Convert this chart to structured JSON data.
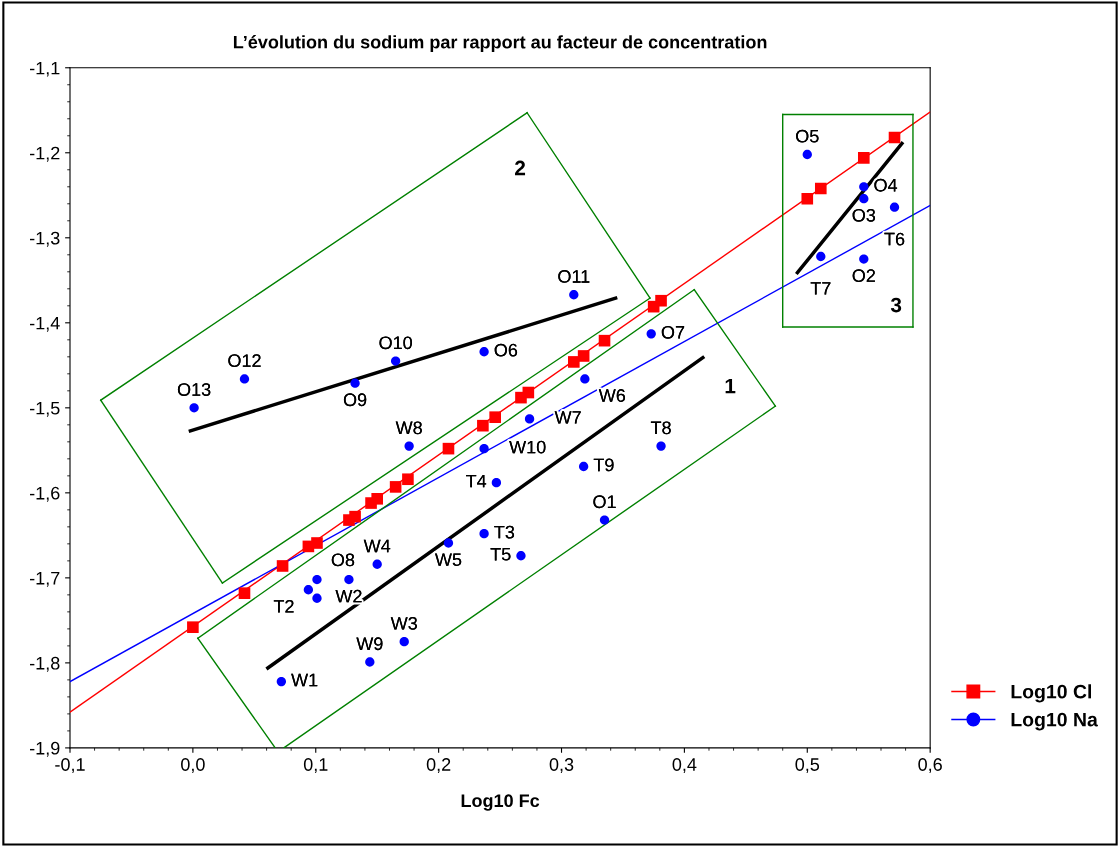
{
  "chart_data": {
    "type": "scatter",
    "title": "L’évolution du sodium par rapport au facteur de concentration",
    "xlabel": "Log10 Fc",
    "xlim": [
      -0.1,
      0.6
    ],
    "ylim": [
      -1.9,
      -1.1
    ],
    "xticks": [
      {
        "value": -0.1,
        "label": "-0,1"
      },
      {
        "value": 0.0,
        "label": "0,0"
      },
      {
        "value": 0.1,
        "label": "0,1"
      },
      {
        "value": 0.2,
        "label": "0,2"
      },
      {
        "value": 0.3,
        "label": "0,3"
      },
      {
        "value": 0.4,
        "label": "0,4"
      },
      {
        "value": 0.5,
        "label": "0,5"
      },
      {
        "value": 0.6,
        "label": "0,6"
      }
    ],
    "yticks": [
      {
        "value": -1.9,
        "label": "-1,9"
      },
      {
        "value": -1.8,
        "label": "-1,8"
      },
      {
        "value": -1.7,
        "label": "-1,7"
      },
      {
        "value": -1.6,
        "label": "-1,6"
      },
      {
        "value": -1.5,
        "label": "-1,5"
      },
      {
        "value": -1.4,
        "label": "-1,4"
      },
      {
        "value": -1.3,
        "label": "-1,3"
      },
      {
        "value": -1.2,
        "label": "-1,2"
      },
      {
        "value": -1.1,
        "label": "-1,1"
      }
    ],
    "grid": false,
    "legend": "bottom right",
    "series": [
      {
        "name": "Log10 Cl",
        "type": "scatter",
        "marker": "square",
        "color": "#ff0000",
        "x": [
          0.0,
          0.042,
          0.073,
          0.094,
          0.101,
          0.127,
          0.132,
          0.145,
          0.15,
          0.165,
          0.175,
          0.208,
          0.236,
          0.246,
          0.267,
          0.273,
          0.31,
          0.318,
          0.335,
          0.375,
          0.381,
          0.5,
          0.511,
          0.546,
          0.571
        ],
        "values": [
          -1.758,
          -1.718,
          -1.686,
          -1.663,
          -1.659,
          -1.632,
          -1.628,
          -1.612,
          -1.607,
          -1.593,
          -1.584,
          -1.548,
          -1.521,
          -1.511,
          -1.488,
          -1.482,
          -1.446,
          -1.439,
          -1.421,
          -1.381,
          -1.374,
          -1.254,
          -1.242,
          -1.206,
          -1.182
        ]
      },
      {
        "name": "Log10 Na",
        "type": "scatter",
        "marker": "circle",
        "color": "#0000ff",
        "x": [
          0.072,
          0.144,
          0.172,
          0.094,
          0.101,
          0.101,
          0.127,
          0.15,
          0.208,
          0.237,
          0.267,
          0.335,
          0.176,
          0.237,
          0.247,
          0.274,
          0.319,
          0.318,
          0.381,
          0.373,
          0.237,
          0.165,
          0.132,
          0.042,
          0.001,
          0.31,
          0.5,
          0.546,
          0.546,
          0.571,
          0.511,
          0.546
        ],
        "values": [
          -1.822,
          -1.799,
          -1.775,
          -1.714,
          -1.724,
          -1.702,
          -1.702,
          -1.684,
          -1.659,
          -1.648,
          -1.674,
          -1.632,
          -1.545,
          -1.548,
          -1.588,
          -1.513,
          -1.466,
          -1.569,
          -1.545,
          -1.413,
          -1.434,
          -1.445,
          -1.471,
          -1.466,
          -1.5,
          -1.367,
          -1.202,
          -1.24,
          -1.254,
          -1.264,
          -1.322,
          -1.325
        ]
      },
      {
        "type": "line",
        "color": "#ff0000",
        "x": [
          -0.1,
          0.6
        ],
        "values": [
          -1.858,
          -1.152
        ]
      },
      {
        "type": "line",
        "color": "#0000ff",
        "x": [
          -0.1,
          0.6
        ],
        "values": [
          -1.822,
          -1.262
        ]
      },
      {
        "type": "line",
        "color": "#000000",
        "x": [
          0.061,
          0.415
        ],
        "values": [
          -1.806,
          -1.441
        ]
      },
      {
        "type": "line",
        "color": "#000000",
        "x": [
          -0.002,
          0.344
        ],
        "values": [
          -1.527,
          -1.371
        ]
      },
      {
        "type": "line",
        "color": "#000000",
        "x": [
          0.492,
          0.577
        ],
        "values": [
          -1.341,
          -1.189
        ]
      },
      {
        "type": "line",
        "color": "#008000",
        "x": [
          0.004,
          0.408
        ],
        "values": [
          -1.771,
          -1.361
        ]
      },
      {
        "type": "line",
        "color": "#008000",
        "x": [
          0.408,
          0.474
        ],
        "values": [
          -1.361,
          -1.498
        ]
      },
      {
        "type": "line",
        "color": "#008000",
        "x": [
          0.074,
          0.474
        ],
        "values": [
          -1.9,
          -1.498
        ]
      },
      {
        "type": "line",
        "color": "#008000",
        "x": [
          0.004,
          0.067
        ],
        "values": [
          -1.771,
          -1.9
        ]
      },
      {
        "type": "line",
        "color": "#008000",
        "x": [
          -0.075,
          0.272
        ],
        "values": [
          -1.491,
          -1.153
        ]
      },
      {
        "type": "line",
        "color": "#008000",
        "x": [
          0.272,
          0.372
        ],
        "values": [
          -1.153,
          -1.371
        ]
      },
      {
        "type": "line",
        "color": "#008000",
        "x": [
          0.024,
          0.372
        ],
        "values": [
          -1.706,
          -1.371
        ]
      },
      {
        "type": "line",
        "color": "#008000",
        "x": [
          -0.075,
          0.024
        ],
        "values": [
          -1.491,
          -1.706
        ]
      },
      {
        "type": "line",
        "color": "#008000",
        "x": [
          0.48,
          0.586
        ],
        "values": [
          -1.155,
          -1.155
        ]
      },
      {
        "type": "line",
        "color": "#008000",
        "x": [
          0.586,
          0.586
        ],
        "values": [
          -1.155,
          -1.405
        ]
      },
      {
        "type": "line",
        "color": "#008000",
        "x": [
          0.48,
          0.586
        ],
        "values": [
          -1.405,
          -1.405
        ]
      },
      {
        "type": "line",
        "color": "#008000",
        "x": [
          0.48,
          0.48
        ],
        "values": [
          -1.155,
          -1.405
        ]
      }
    ],
    "annotations": [
      {
        "text": "W1",
        "x": 0.072,
        "y": -1.822
      },
      {
        "text": "W9",
        "x": 0.144,
        "y": -1.799
      },
      {
        "text": "W3",
        "x": 0.172,
        "y": -1.775
      },
      {
        "text": "T2",
        "x": 0.094,
        "y": -1.714
      },
      {
        "text": "O8",
        "x": 0.101,
        "y": -1.702
      },
      {
        "text": "W2",
        "x": 0.127,
        "y": -1.702
      },
      {
        "text": "W4",
        "x": 0.15,
        "y": -1.684
      },
      {
        "text": "W5",
        "x": 0.208,
        "y": -1.659
      },
      {
        "text": "T3",
        "x": 0.237,
        "y": -1.648
      },
      {
        "text": "T5",
        "x": 0.267,
        "y": -1.674
      },
      {
        "text": "O1",
        "x": 0.335,
        "y": -1.632
      },
      {
        "text": "W8",
        "x": 0.176,
        "y": -1.545
      },
      {
        "text": "W10",
        "x": 0.237,
        "y": -1.548
      },
      {
        "text": "T4",
        "x": 0.247,
        "y": -1.588
      },
      {
        "text": "W7",
        "x": 0.274,
        "y": -1.513
      },
      {
        "text": "W6",
        "x": 0.319,
        "y": -1.466
      },
      {
        "text": "T9",
        "x": 0.318,
        "y": -1.569
      },
      {
        "text": "T8",
        "x": 0.381,
        "y": -1.545
      },
      {
        "text": "O7",
        "x": 0.373,
        "y": -1.413
      },
      {
        "text": "O6",
        "x": 0.237,
        "y": -1.434
      },
      {
        "text": "O10",
        "x": 0.165,
        "y": -1.445
      },
      {
        "text": "O9",
        "x": 0.132,
        "y": -1.471
      },
      {
        "text": "O12",
        "x": 0.042,
        "y": -1.466
      },
      {
        "text": "O13",
        "x": 0.001,
        "y": -1.5
      },
      {
        "text": "O11",
        "x": 0.31,
        "y": -1.367
      },
      {
        "text": "O5",
        "x": 0.5,
        "y": -1.202
      },
      {
        "text": "O4",
        "x": 0.546,
        "y": -1.24
      },
      {
        "text": "O3",
        "x": 0.546,
        "y": -1.254
      },
      {
        "text": "T6",
        "x": 0.571,
        "y": -1.264
      },
      {
        "text": "T7",
        "x": 0.511,
        "y": -1.322
      },
      {
        "text": "O2",
        "x": 0.546,
        "y": -1.325
      },
      "1",
      "2",
      "3"
    ]
  }
}
